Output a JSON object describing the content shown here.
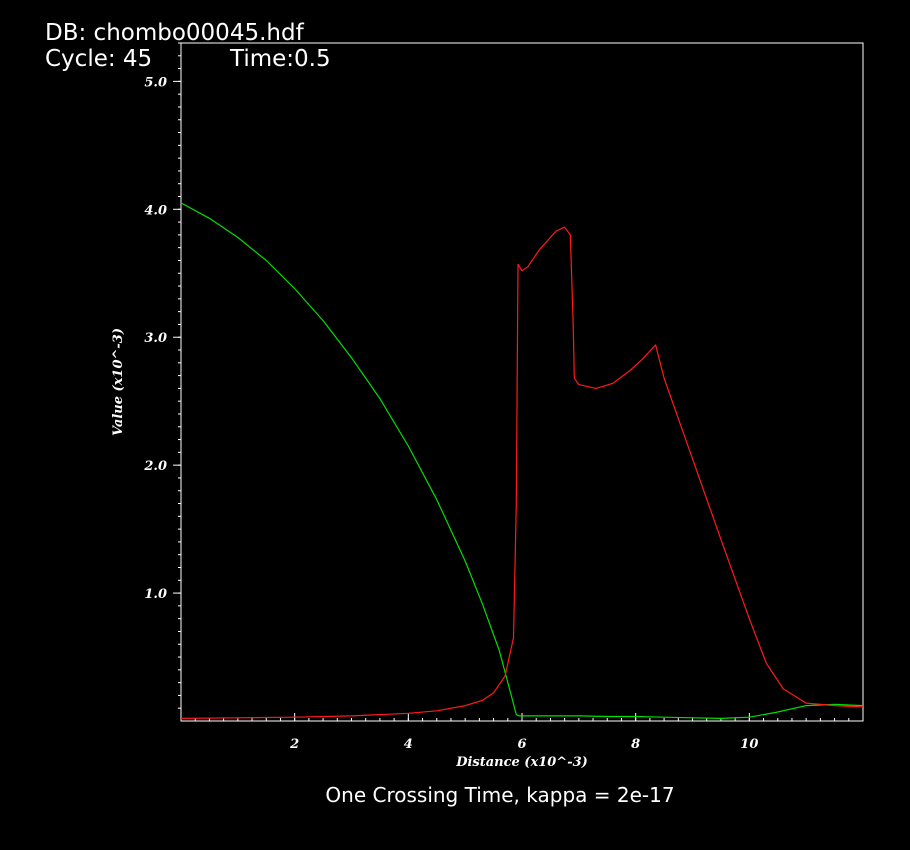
{
  "header": {
    "db_label": "DB: chombo00045.hdf",
    "cycle_label": "Cycle: 45",
    "time_label": "Time:0.5"
  },
  "caption": "One Crossing Time, kappa = 2e-17",
  "chart_data": {
    "type": "line",
    "xlabel": "Distance (x10^-3)",
    "ylabel": "Value (x10^-3)",
    "xlim": [
      0,
      12
    ],
    "ylim": [
      0,
      5.3
    ],
    "x_ticks": [
      2,
      4,
      6,
      8,
      10
    ],
    "x_tick_labels": [
      "2",
      "4",
      "6",
      "8",
      "10"
    ],
    "y_ticks": [
      1.0,
      2.0,
      3.0,
      4.0,
      5.0
    ],
    "y_tick_labels": [
      "1.0",
      "2.0",
      "3.0",
      "4.0",
      "5.0"
    ],
    "grid": false,
    "legend": "none",
    "series": [
      {
        "color": "#00e000",
        "x": [
          0,
          0.5,
          1,
          1.5,
          2,
          2.5,
          3,
          3.5,
          4,
          4.5,
          5,
          5.3,
          5.6,
          5.8,
          5.9,
          5.95,
          6.0,
          6.5,
          7,
          7.5,
          8,
          8.5,
          9,
          9.5,
          10,
          10.5,
          11,
          11.5,
          12
        ],
        "y": [
          4.05,
          3.93,
          3.78,
          3.6,
          3.38,
          3.13,
          2.84,
          2.52,
          2.15,
          1.73,
          1.25,
          0.92,
          0.55,
          0.22,
          0.05,
          0.04,
          0.04,
          0.04,
          0.04,
          0.035,
          0.035,
          0.03,
          0.025,
          0.02,
          0.03,
          0.07,
          0.12,
          0.13,
          0.12
        ]
      },
      {
        "color": "#ff1a1a",
        "x": [
          0,
          1,
          2,
          3,
          4,
          4.5,
          5,
          5.3,
          5.5,
          5.7,
          5.85,
          5.9,
          5.93,
          6.0,
          6.1,
          6.3,
          6.6,
          6.75,
          6.85,
          6.9,
          6.92,
          7.0,
          7.3,
          7.6,
          7.9,
          8.1,
          8.35,
          8.5,
          9,
          9.5,
          10,
          10.3,
          10.6,
          11,
          11.5,
          12
        ],
        "y": [
          0.02,
          0.025,
          0.03,
          0.04,
          0.06,
          0.08,
          0.12,
          0.16,
          0.22,
          0.35,
          0.65,
          1.7,
          3.57,
          3.52,
          3.55,
          3.68,
          3.83,
          3.86,
          3.8,
          3.1,
          2.68,
          2.63,
          2.6,
          2.64,
          2.74,
          2.82,
          2.94,
          2.68,
          2.05,
          1.42,
          0.8,
          0.45,
          0.25,
          0.14,
          0.12,
          0.11
        ]
      }
    ]
  }
}
